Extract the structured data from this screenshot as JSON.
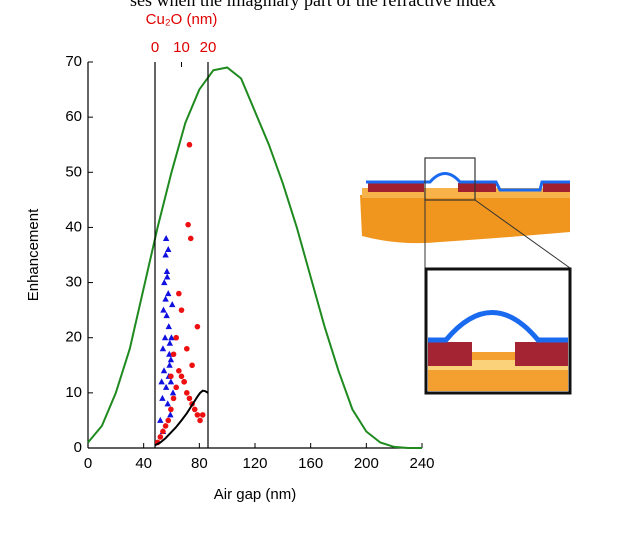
{
  "caption": "ses when the imaginary part of the refractive index",
  "chart_data": [
    {
      "type": "line",
      "xlabel": "Air gap (nm)",
      "ylabel": "Enhancement",
      "xlim": [
        0,
        240
      ],
      "xticks": [
        0,
        40,
        80,
        120,
        160,
        200,
        240
      ],
      "ylim": [
        0,
        70
      ],
      "yticks": [
        0,
        10,
        20,
        30,
        40,
        50,
        60,
        70
      ],
      "series": [
        {
          "type": "line",
          "color": "#1f8a1f",
          "x": [
            0,
            10,
            20,
            30,
            40,
            50,
            60,
            70,
            80,
            90,
            100,
            110,
            120,
            130,
            140,
            150,
            160,
            170,
            180,
            190,
            200,
            210,
            220,
            230,
            240
          ],
          "values": [
            1,
            4,
            10,
            18,
            29,
            40,
            50,
            59,
            65,
            68.5,
            69,
            67,
            61,
            55,
            48,
            40,
            31,
            22,
            14,
            7,
            3,
            1,
            0.2,
            0,
            0
          ]
        }
      ]
    },
    {
      "type": "scatter",
      "xlabel": "Cu₂O (nm)",
      "xlim": [
        0,
        20
      ],
      "xticks": [
        0,
        10,
        20
      ],
      "ylim": [
        0,
        70
      ],
      "tick_color": "#e00000",
      "series": [
        {
          "type": "scatter",
          "marker": "triangle",
          "color": "#1010e0",
          "x": [
            2.0,
            2.5,
            3.0,
            3.2,
            3.5,
            4.0,
            4.2,
            4.5,
            5.0,
            5.2,
            5.5,
            6.0,
            6.2,
            6.5,
            3.8,
            4.8,
            5.8,
            2.8,
            4.4,
            5.4,
            6.8,
            3.4,
            4.6,
            5.6,
            3.0,
            4.0,
            5.0,
            6.0,
            4.2,
            5.2
          ],
          "values": [
            5,
            12,
            18,
            25,
            30,
            35,
            38,
            32,
            28,
            22,
            15,
            12,
            20,
            26,
            20,
            8,
            6,
            9,
            24,
            17,
            10,
            14,
            31,
            19,
            3,
            27,
            36,
            16,
            11,
            13
          ]
        },
        {
          "type": "scatter",
          "marker": "circle",
          "color": "#ee1010",
          "x": [
            1,
            2,
            3,
            4,
            5,
            6,
            7,
            8,
            9,
            10,
            11,
            12,
            13,
            14,
            15,
            16,
            17,
            18,
            8,
            10,
            12,
            14,
            16,
            11,
            12.5,
            13.5,
            9,
            7,
            6,
            13
          ],
          "values": [
            1,
            2,
            3,
            4,
            5,
            7,
            9,
            11,
            14,
            13,
            12,
            10,
            9,
            8,
            7,
            6,
            5,
            6,
            20,
            25,
            18,
            15,
            22,
            12,
            40.5,
            38,
            28,
            17,
            13,
            55
          ]
        },
        {
          "type": "line",
          "color": "#000000",
          "x": [
            0,
            2,
            4,
            6,
            8,
            10,
            12,
            14,
            16,
            17,
            18,
            19,
            20
          ],
          "values": [
            0.5,
            1,
            1.8,
            2.8,
            3.8,
            5,
            6.3,
            7.8,
            9.3,
            10,
            10.4,
            10.3,
            10
          ]
        }
      ]
    }
  ]
}
